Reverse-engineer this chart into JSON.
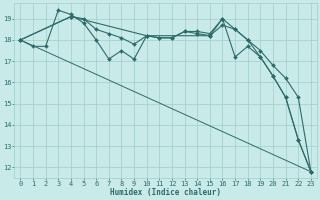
{
  "xlabel": "Humidex (Indice chaleur)",
  "bg_color": "#c8eae8",
  "grid_color": "#a0cccc",
  "line_color": "#2e6b6b",
  "xlim": [
    -0.5,
    23.5
  ],
  "ylim": [
    11.5,
    19.75
  ],
  "yticks": [
    12,
    13,
    14,
    15,
    16,
    17,
    18,
    19
  ],
  "xticks": [
    0,
    1,
    2,
    3,
    4,
    5,
    6,
    7,
    8,
    9,
    10,
    11,
    12,
    13,
    14,
    15,
    16,
    17,
    18,
    19,
    20,
    21,
    22,
    23
  ],
  "series": [
    {
      "x": [
        0,
        1,
        2,
        3,
        4,
        5,
        6,
        7,
        8,
        9,
        10,
        11,
        12,
        13,
        14,
        15,
        16,
        17,
        18,
        19,
        20,
        21,
        22,
        23
      ],
      "y": [
        18.0,
        17.7,
        17.7,
        19.4,
        19.2,
        18.8,
        18.0,
        17.1,
        17.5,
        17.1,
        18.2,
        18.1,
        18.1,
        18.4,
        18.4,
        18.3,
        19.0,
        18.5,
        18.0,
        17.2,
        16.3,
        15.3,
        13.3,
        11.8
      ],
      "marker": "D",
      "ms": 2.0,
      "lw": 0.8
    },
    {
      "x": [
        0,
        4,
        5,
        6,
        7,
        8,
        9,
        10,
        11,
        12,
        13,
        14,
        15,
        16,
        17,
        18,
        19,
        20,
        21,
        22,
        23
      ],
      "y": [
        18.0,
        19.1,
        19.0,
        18.5,
        18.3,
        18.1,
        17.8,
        18.2,
        18.1,
        18.1,
        18.4,
        18.3,
        18.2,
        18.7,
        18.5,
        18.0,
        17.5,
        16.8,
        16.2,
        15.3,
        11.8
      ],
      "marker": "D",
      "ms": 2.0,
      "lw": 0.8
    },
    {
      "x": [
        0,
        4,
        10,
        15,
        16,
        17,
        18,
        19,
        20,
        21,
        22,
        23
      ],
      "y": [
        18.0,
        19.1,
        18.2,
        18.2,
        19.0,
        17.2,
        17.7,
        17.2,
        16.3,
        15.3,
        13.3,
        11.8
      ],
      "marker": "D",
      "ms": 2.0,
      "lw": 0.8
    },
    {
      "x": [
        0,
        23
      ],
      "y": [
        18.0,
        11.8
      ],
      "marker": null,
      "ms": 0,
      "lw": 0.7
    }
  ]
}
